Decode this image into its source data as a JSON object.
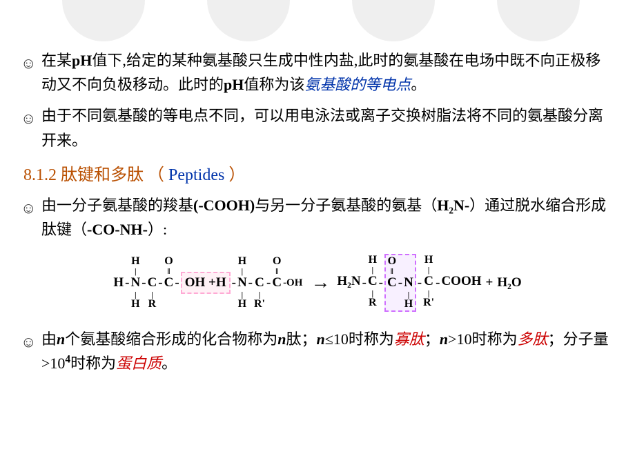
{
  "circles": {
    "bg_color": "#efefef"
  },
  "bullets": {
    "b1_prefix": "在某",
    "b1_ph": "pH",
    "b1_mid1": "值下,给定的某种氨基酸只生成中性内盐,此时的氨基酸在电场中既不向正极移动又不向负极移动。此时的",
    "b1_ph2": "pH",
    "b1_mid2": "值称为该",
    "b1_highlight": "氨基酸的等电点",
    "b1_end": "。",
    "b2": "由于不同氨基酸的等电点不同，可以用电泳法或离子交换树脂法将不同的氨基酸分离开来。",
    "b3_p1": "由一分子氨基酸的羧基",
    "b3_p2": "(-COOH)",
    "b3_p3": "与另一分子氨基酸的氨基（",
    "b3_p4": "H₂N-",
    "b3_p5": "）通过脱水缩合形成肽键（",
    "b3_p6": "-CO-NH-",
    "b3_p7": "）:",
    "b4_p1": "由",
    "b4_n1": "n",
    "b4_p2": "个氨基酸缩合形成的化合物称为",
    "b4_n2": "n",
    "b4_p3": "肽；",
    "b4_n3": "n",
    "b4_p4": "≤10时称为",
    "b4_oligo": "寡肽",
    "b4_p5": "；",
    "b4_n4": "n",
    "b4_p6": ">10时称为",
    "b4_poly": "多肽",
    "b4_p7": "；分子量>10",
    "b4_exp": "4",
    "b4_p8": "时称为",
    "b4_protein": "蛋白质",
    "b4_p9": "。"
  },
  "section": {
    "num": "8.1.2 ",
    "zh": "肽键和多肽 （ ",
    "en": "Peptides",
    "tail": " ）"
  },
  "chem": {
    "H": "H",
    "O": "O",
    "N": "N",
    "C": "C",
    "R": "R",
    "Rp": "R'",
    "OH": "OH",
    "plus": "+ ",
    "Hp": "H",
    "minusOH": "-OH",
    "arrow": "→",
    "H2N": "H₂N",
    "COOH": "COOH",
    "H2O": "H₂O",
    "dbl": "‖",
    "sgl": "|",
    "dash": "-"
  },
  "colors": {
    "section": "#b94f00",
    "blue": "#0033aa",
    "red": "#cc0000",
    "box_pink_border": "#ffaad5",
    "box_purple_border": "#cf6fff"
  }
}
